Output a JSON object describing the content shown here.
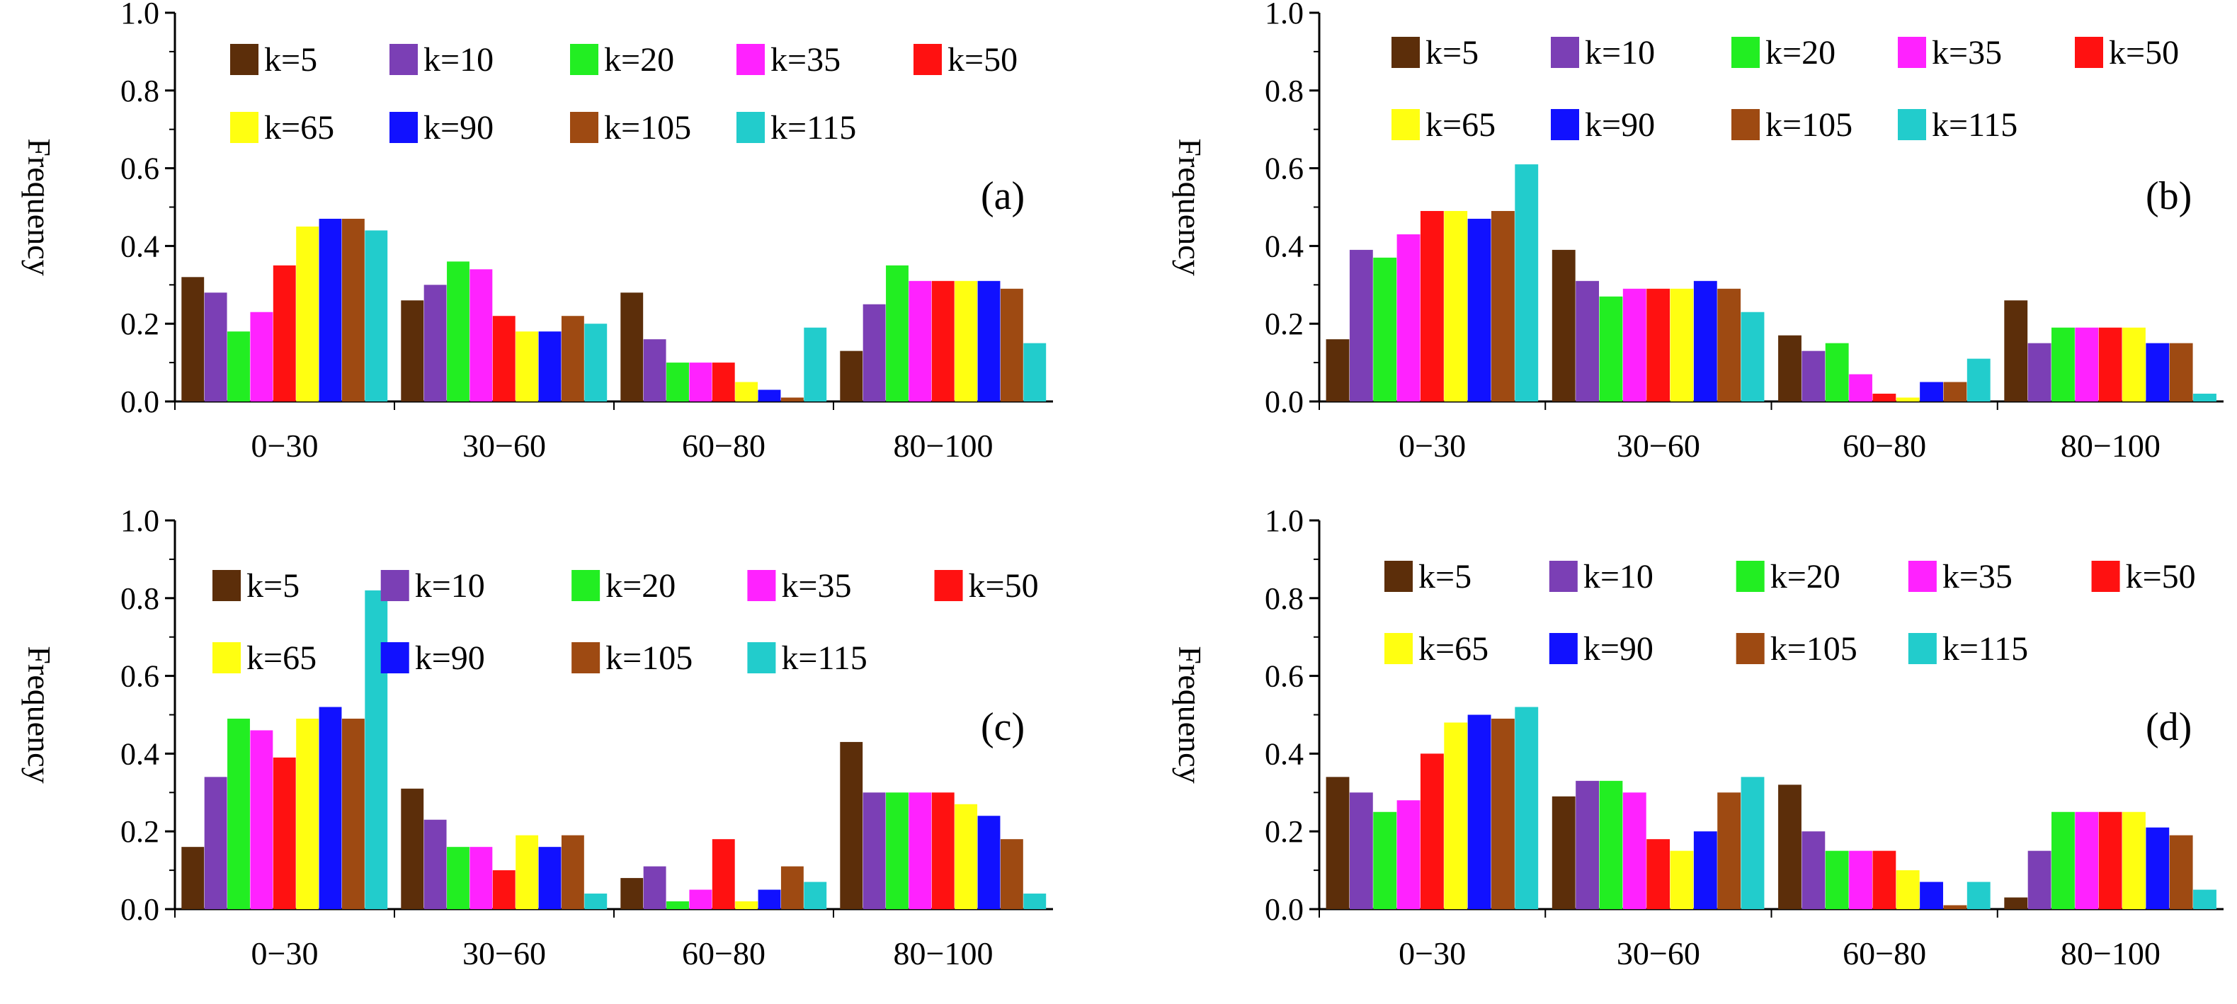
{
  "chart_data": [
    {
      "type": "bar",
      "panel_label": "(a)",
      "ylabel": "Frequency",
      "xlabel": "",
      "ylim": [
        0,
        1.0
      ],
      "yticks": [
        "0.0",
        "0.2",
        "0.4",
        "0.6",
        "0.8",
        "1.0"
      ],
      "categories": [
        "0−30",
        "30−60",
        "60−80",
        "80−100"
      ],
      "series": [
        {
          "name": "k=5",
          "color": "#5C2E0A",
          "values": [
            0.32,
            0.26,
            0.28,
            0.13
          ]
        },
        {
          "name": "k=10",
          "color": "#7B3FB5",
          "values": [
            0.28,
            0.3,
            0.16,
            0.25
          ]
        },
        {
          "name": "k=20",
          "color": "#22EE22",
          "values": [
            0.18,
            0.36,
            0.1,
            0.35
          ]
        },
        {
          "name": "k=35",
          "color": "#FF22FF",
          "values": [
            0.23,
            0.34,
            0.1,
            0.31
          ]
        },
        {
          "name": "k=50",
          "color": "#FF1111",
          "values": [
            0.35,
            0.22,
            0.1,
            0.31
          ]
        },
        {
          "name": "k=65",
          "color": "#FFFF11",
          "values": [
            0.45,
            0.18,
            0.05,
            0.31
          ]
        },
        {
          "name": "k=90",
          "color": "#1111FF",
          "values": [
            0.47,
            0.18,
            0.03,
            0.31
          ]
        },
        {
          "name": "k=105",
          "color": "#9E4A12",
          "values": [
            0.47,
            0.22,
            0.01,
            0.29
          ]
        },
        {
          "name": "k=115",
          "color": "#22CCCC",
          "values": [
            0.44,
            0.2,
            0.19,
            0.15
          ]
        }
      ]
    },
    {
      "type": "bar",
      "panel_label": "(b)",
      "ylabel": "Frequency",
      "xlabel": "",
      "ylim": [
        0,
        1.0
      ],
      "yticks": [
        "0.0",
        "0.2",
        "0.4",
        "0.6",
        "0.8",
        "1.0"
      ],
      "categories": [
        "0−30",
        "30−60",
        "60−80",
        "80−100"
      ],
      "series": [
        {
          "name": "k=5",
          "color": "#5C2E0A",
          "values": [
            0.16,
            0.39,
            0.17,
            0.26
          ]
        },
        {
          "name": "k=10",
          "color": "#7B3FB5",
          "values": [
            0.39,
            0.31,
            0.13,
            0.15
          ]
        },
        {
          "name": "k=20",
          "color": "#22EE22",
          "values": [
            0.37,
            0.27,
            0.15,
            0.19
          ]
        },
        {
          "name": "k=35",
          "color": "#FF22FF",
          "values": [
            0.43,
            0.29,
            0.07,
            0.19
          ]
        },
        {
          "name": "k=50",
          "color": "#FF1111",
          "values": [
            0.49,
            0.29,
            0.02,
            0.19
          ]
        },
        {
          "name": "k=65",
          "color": "#FFFF11",
          "values": [
            0.49,
            0.29,
            0.01,
            0.19
          ]
        },
        {
          "name": "k=90",
          "color": "#1111FF",
          "values": [
            0.47,
            0.31,
            0.05,
            0.15
          ]
        },
        {
          "name": "k=105",
          "color": "#9E4A12",
          "values": [
            0.49,
            0.29,
            0.05,
            0.15
          ]
        },
        {
          "name": "k=115",
          "color": "#22CCCC",
          "values": [
            0.61,
            0.23,
            0.11,
            0.02
          ]
        }
      ]
    },
    {
      "type": "bar",
      "panel_label": "(c)",
      "ylabel": "Frequency",
      "xlabel": "",
      "ylim": [
        0,
        1.0
      ],
      "yticks": [
        "0.0",
        "0.2",
        "0.4",
        "0.6",
        "0.8",
        "1.0"
      ],
      "categories": [
        "0−30",
        "30−60",
        "60−80",
        "80−100"
      ],
      "series": [
        {
          "name": "k=5",
          "color": "#5C2E0A",
          "values": [
            0.16,
            0.31,
            0.08,
            0.43
          ]
        },
        {
          "name": "k=10",
          "color": "#7B3FB5",
          "values": [
            0.34,
            0.23,
            0.11,
            0.3
          ]
        },
        {
          "name": "k=20",
          "color": "#22EE22",
          "values": [
            0.49,
            0.16,
            0.02,
            0.3
          ]
        },
        {
          "name": "k=35",
          "color": "#FF22FF",
          "values": [
            0.46,
            0.16,
            0.05,
            0.3
          ]
        },
        {
          "name": "k=50",
          "color": "#FF1111",
          "values": [
            0.39,
            0.1,
            0.18,
            0.3
          ]
        },
        {
          "name": "k=65",
          "color": "#FFFF11",
          "values": [
            0.49,
            0.19,
            0.02,
            0.27
          ]
        },
        {
          "name": "k=90",
          "color": "#1111FF",
          "values": [
            0.52,
            0.16,
            0.05,
            0.24
          ]
        },
        {
          "name": "k=105",
          "color": "#9E4A12",
          "values": [
            0.49,
            0.19,
            0.11,
            0.18
          ]
        },
        {
          "name": "k=115",
          "color": "#22CCCC",
          "values": [
            0.82,
            0.04,
            0.07,
            0.04
          ]
        }
      ]
    },
    {
      "type": "bar",
      "panel_label": "(d)",
      "ylabel": "Frequency",
      "xlabel": "",
      "ylim": [
        0,
        1.0
      ],
      "yticks": [
        "0.0",
        "0.2",
        "0.4",
        "0.6",
        "0.8",
        "1.0"
      ],
      "categories": [
        "0−30",
        "30−60",
        "60−80",
        "80−100"
      ],
      "series": [
        {
          "name": "k=5",
          "color": "#5C2E0A",
          "values": [
            0.34,
            0.29,
            0.32,
            0.03
          ]
        },
        {
          "name": "k=10",
          "color": "#7B3FB5",
          "values": [
            0.3,
            0.33,
            0.2,
            0.15
          ]
        },
        {
          "name": "k=20",
          "color": "#22EE22",
          "values": [
            0.25,
            0.33,
            0.15,
            0.25
          ]
        },
        {
          "name": "k=35",
          "color": "#FF22FF",
          "values": [
            0.28,
            0.3,
            0.15,
            0.25
          ]
        },
        {
          "name": "k=50",
          "color": "#FF1111",
          "values": [
            0.4,
            0.18,
            0.15,
            0.25
          ]
        },
        {
          "name": "k=65",
          "color": "#FFFF11",
          "values": [
            0.48,
            0.15,
            0.1,
            0.25
          ]
        },
        {
          "name": "k=90",
          "color": "#1111FF",
          "values": [
            0.5,
            0.2,
            0.07,
            0.21
          ]
        },
        {
          "name": "k=105",
          "color": "#9E4A12",
          "values": [
            0.49,
            0.3,
            0.01,
            0.19
          ]
        },
        {
          "name": "k=115",
          "color": "#22CCCC",
          "values": [
            0.52,
            0.34,
            0.07,
            0.05
          ]
        }
      ]
    }
  ]
}
